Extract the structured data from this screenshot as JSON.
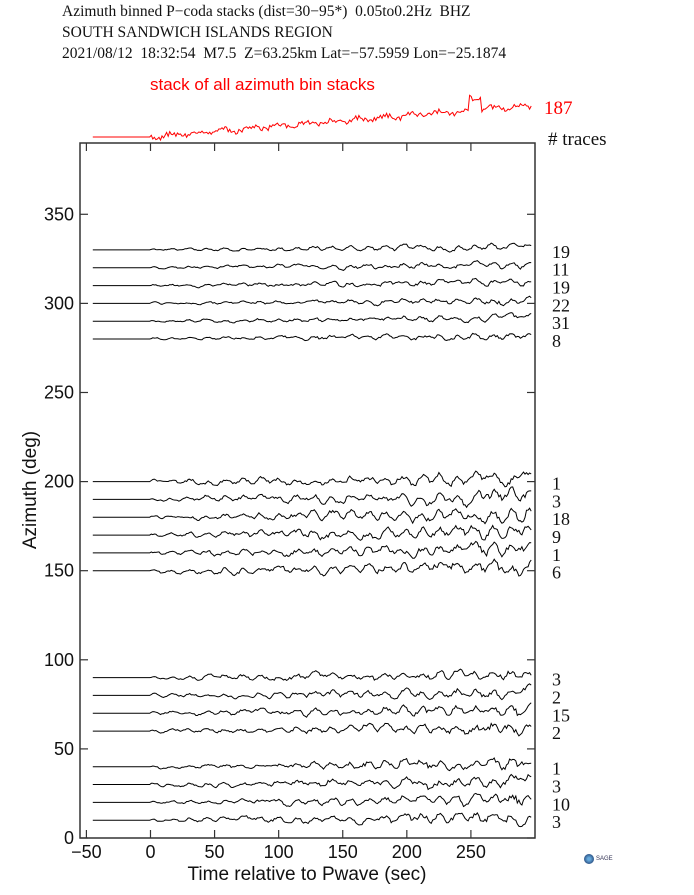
{
  "header": {
    "line1": "Azimuth binned P−coda stacks (dist=30−95*)  0.05to0.2Hz  BHZ",
    "line2": "SOUTH SANDWICH ISLANDS REGION",
    "line3": "2021/08/12  18:32:54  M7.5  Z=63.25km Lat=−57.5959 Lon=−25.1874"
  },
  "logo": {
    "text": "SAGE"
  },
  "chart_data": {
    "type": "line",
    "xlabel": "Time relative to Pwave (sec)",
    "ylabel": "Azimuth (deg)",
    "xlim": [
      -55,
      300
    ],
    "ylim": [
      0,
      390
    ],
    "xticks": [
      -50,
      0,
      50,
      100,
      150,
      200,
      250
    ],
    "yticks": [
      0,
      50,
      100,
      150,
      200,
      250,
      300,
      350
    ],
    "stack": {
      "label": "stack of all azimuth bin stacks",
      "count": "187",
      "color": "#ff0000"
    },
    "traces_header": "# traces",
    "trace_color": "#000000",
    "bins": [
      {
        "azimuth": 330,
        "traces": "19"
      },
      {
        "azimuth": 320,
        "traces": "11"
      },
      {
        "azimuth": 310,
        "traces": "19"
      },
      {
        "azimuth": 300,
        "traces": "22"
      },
      {
        "azimuth": 290,
        "traces": "31"
      },
      {
        "azimuth": 280,
        "traces": "8"
      },
      {
        "azimuth": 200,
        "traces": "1"
      },
      {
        "azimuth": 190,
        "traces": "3"
      },
      {
        "azimuth": 180,
        "traces": "18"
      },
      {
        "azimuth": 170,
        "traces": "9"
      },
      {
        "azimuth": 160,
        "traces": "1"
      },
      {
        "azimuth": 150,
        "traces": "6"
      },
      {
        "azimuth": 90,
        "traces": "3"
      },
      {
        "azimuth": 80,
        "traces": "2"
      },
      {
        "azimuth": 70,
        "traces": "15"
      },
      {
        "azimuth": 60,
        "traces": "2"
      },
      {
        "azimuth": 40,
        "traces": "1"
      },
      {
        "azimuth": 30,
        "traces": "3"
      },
      {
        "azimuth": 20,
        "traces": "10"
      },
      {
        "azimuth": 10,
        "traces": "3"
      }
    ]
  }
}
